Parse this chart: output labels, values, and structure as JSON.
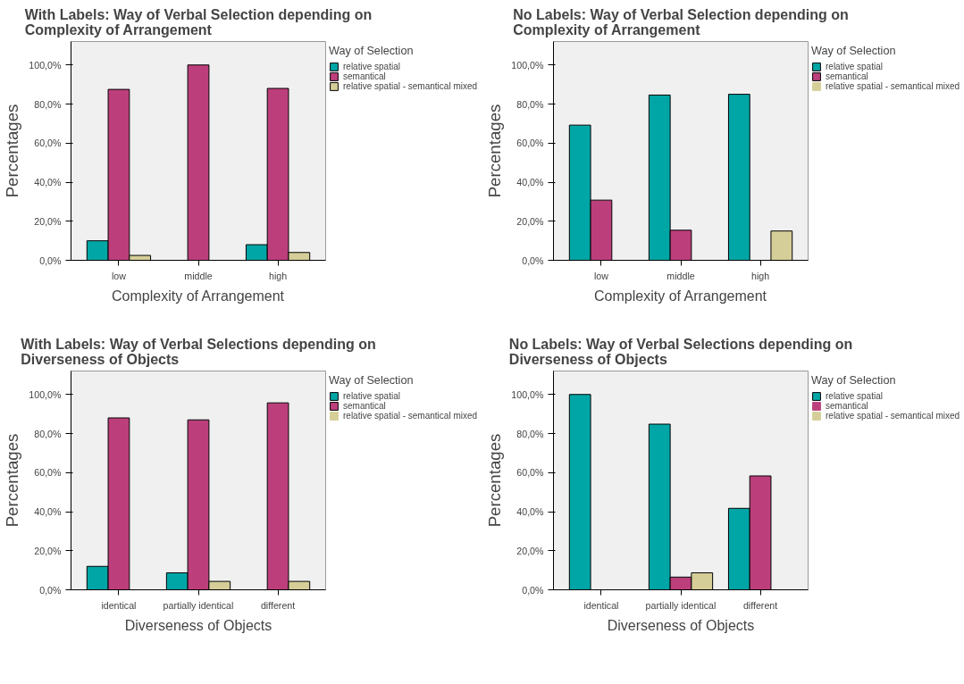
{
  "chart_data": [
    {
      "type": "bar",
      "title": "With Labels: Way of Verbal Selection depending on Complexity of Arrangement",
      "xlabel": "Complexity of Arrangement",
      "ylabel": "Percentages",
      "legend_title": "Way of Selection",
      "legend": "right",
      "grid": false,
      "categories": [
        "low",
        "middle",
        "high"
      ],
      "ylim": [
        0,
        112
      ],
      "yticks": [
        {
          "value": 0,
          "label": "0,0%"
        },
        {
          "value": 20,
          "label": "20,0%"
        },
        {
          "value": 40,
          "label": "40,0%"
        },
        {
          "value": 60,
          "label": "60,0%"
        },
        {
          "value": 80,
          "label": "80,0%"
        },
        {
          "value": 100,
          "label": "100,0%"
        }
      ],
      "series": [
        {
          "name": "relative spatial",
          "color": "#00a6a6",
          "values": [
            10,
            0,
            8
          ]
        },
        {
          "name": "semantical",
          "color": "#bc3f7c",
          "values": [
            87.5,
            100,
            88
          ]
        },
        {
          "name": "relative spatial - semantical mixed",
          "color": "#d5ce98",
          "values": [
            2.5,
            0,
            4
          ]
        }
      ]
    },
    {
      "type": "bar",
      "title": "No Labels: Way of Verbal Selection depending on Complexity of Arrangement",
      "xlabel": "Complexity of Arrangement",
      "ylabel": "Percentages",
      "legend_title": "Way of Selection",
      "legend": "right",
      "grid": false,
      "categories": [
        "low",
        "middle",
        "high"
      ],
      "ylim": [
        0,
        112
      ],
      "yticks": [
        {
          "value": 0,
          "label": "0,0%"
        },
        {
          "value": 20,
          "label": "20,0%"
        },
        {
          "value": 40,
          "label": "40,0%"
        },
        {
          "value": 60,
          "label": "60,0%"
        },
        {
          "value": 80,
          "label": "80,0%"
        },
        {
          "value": 100,
          "label": "100,0%"
        }
      ],
      "series": [
        {
          "name": "relative spatial",
          "color": "#00a6a6",
          "values": [
            69.2,
            84.6,
            85
          ]
        },
        {
          "name": "semantical",
          "color": "#bc3f7c",
          "values": [
            30.8,
            15.4,
            0
          ]
        },
        {
          "name": "relative spatial - semantical mixed",
          "color": "#d5ce98",
          "values": [
            0,
            0,
            15
          ]
        }
      ]
    },
    {
      "type": "bar",
      "title": "With Labels: Way of Verbal Selections depending on Diverseness of Objects",
      "xlabel": "Diverseness of Objects",
      "ylabel": "Percentages",
      "legend_title": "Way of Selection",
      "legend": "right",
      "grid": false,
      "categories": [
        "identical",
        "partially identical",
        "different"
      ],
      "ylim": [
        0,
        112
      ],
      "yticks": [
        {
          "value": 0,
          "label": "0,0%"
        },
        {
          "value": 20,
          "label": "20,0%"
        },
        {
          "value": 40,
          "label": "40,0%"
        },
        {
          "value": 60,
          "label": "60,0%"
        },
        {
          "value": 80,
          "label": "80,0%"
        },
        {
          "value": 100,
          "label": "100,0%"
        }
      ],
      "series": [
        {
          "name": "relative spatial",
          "color": "#00a6a6",
          "values": [
            12,
            8.7,
            0
          ]
        },
        {
          "name": "semantical",
          "color": "#bc3f7c",
          "values": [
            88,
            87,
            95.7
          ]
        },
        {
          "name": "relative spatial - semantical mixed",
          "color": "#d5ce98",
          "values": [
            0,
            4.3,
            4.3
          ]
        }
      ]
    },
    {
      "type": "bar",
      "title": "No Labels: Way of Verbal Selections depending on Diverseness of Objects",
      "xlabel": "Diverseness of Objects",
      "ylabel": "Percentages",
      "legend_title": "Way of Selection",
      "legend": "right",
      "grid": false,
      "categories": [
        "identical",
        "partially identical",
        "different"
      ],
      "ylim": [
        0,
        112
      ],
      "yticks": [
        {
          "value": 0,
          "label": "0,0%"
        },
        {
          "value": 20,
          "label": "20,0%"
        },
        {
          "value": 40,
          "label": "40,0%"
        },
        {
          "value": 60,
          "label": "60,0%"
        },
        {
          "value": 80,
          "label": "80,0%"
        },
        {
          "value": 100,
          "label": "100,0%"
        }
      ],
      "series": [
        {
          "name": "relative spatial",
          "color": "#00a6a6",
          "values": [
            100,
            84.8,
            41.7
          ]
        },
        {
          "name": "semantical",
          "color": "#bc3f7c",
          "values": [
            0,
            6.5,
            58.3
          ]
        },
        {
          "name": "relative spatial - semantical mixed",
          "color": "#d5ce98",
          "values": [
            0,
            8.7,
            0
          ]
        }
      ]
    }
  ]
}
